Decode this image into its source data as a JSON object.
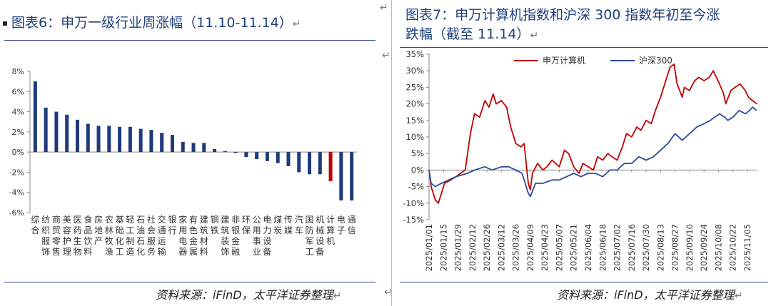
{
  "left": {
    "title": "图表6：申万一级行业周涨幅（11.10-11.14）",
    "source": "资料来源：iFinD，太平洋证券整理"
  },
  "right": {
    "title_line1": "图表7：申万计算机指数和沪深 300 指数年初至今涨",
    "title_line2": "跌幅（截至 11.14）",
    "source": "资料来源：iFinD，太平洋证券整理"
  },
  "return_mark": "↵",
  "chart_data": [
    {
      "type": "bar",
      "bar_color": "#1f3a7a",
      "highlight_color": "#c00000",
      "highlight_category": "计算机",
      "categories": [
        "综合",
        "纺织服饰",
        "商贸零售",
        "美容护理",
        "医药生物",
        "食品饮料",
        "房地产",
        "农林牧渔",
        "基础化工",
        "轻工制造",
        "石油石化",
        "社会服务",
        "交通运输",
        "银行",
        "家用电器",
        "有色金属",
        "建筑材料",
        "钢铁",
        "建筑装饰",
        "非银金融",
        "环保",
        "公用事业",
        "电力设备",
        "煤炭",
        "传媒",
        "汽车",
        "国防军工",
        "机械设备",
        "计算机",
        "电子",
        "通信"
      ],
      "values": [
        7.0,
        4.4,
        4.0,
        3.7,
        3.2,
        2.8,
        2.6,
        2.6,
        2.5,
        2.5,
        2.3,
        2.2,
        1.9,
        1.7,
        1.0,
        0.9,
        0.9,
        0.3,
        0.1,
        -0.1,
        -0.5,
        -0.7,
        -0.9,
        -1.1,
        -1.4,
        -2.0,
        -2.2,
        -2.2,
        -2.9,
        -4.8,
        -4.8
      ],
      "ylim": [
        -6,
        8
      ],
      "yticks": [
        "-6%",
        "-4%",
        "-2%",
        "0%",
        "2%",
        "4%",
        "6%",
        "8%"
      ]
    },
    {
      "type": "line",
      "ylim": [
        -15,
        35
      ],
      "yticks": [
        "-15%",
        "-10%",
        "-5%",
        "0%",
        "5%",
        "10%",
        "15%",
        "20%",
        "25%",
        "30%",
        "35%"
      ],
      "xticks": [
        "2025/01/01",
        "2025/01/15",
        "2025/01/29",
        "2025/02/12",
        "2025/02/26",
        "2025/03/12",
        "2025/03/26",
        "2025/04/09",
        "2025/04/23",
        "2025/05/07",
        "2025/05/21",
        "2025/06/04",
        "2025/06/18",
        "2025/07/02",
        "2025/07/16",
        "2025/07/30",
        "2025/08/13",
        "2025/08/27",
        "2025/09/10",
        "2025/09/24",
        "2025/10/08",
        "2025/10/22",
        "2025/11/05"
      ],
      "legend_position": "top",
      "series": [
        {
          "name": "申万计算机",
          "color": "#c00000",
          "points": [
            [
              "2025/01/01",
              0
            ],
            [
              "2025/01/03",
              -5
            ],
            [
              "2025/01/07",
              -9
            ],
            [
              "2025/01/10",
              -10
            ],
            [
              "2025/01/13",
              -7
            ],
            [
              "2025/01/16",
              -4
            ],
            [
              "2025/01/22",
              -3
            ],
            [
              "2025/01/27",
              -2
            ],
            [
              "2025/02/05",
              0
            ],
            [
              "2025/02/10",
              11
            ],
            [
              "2025/02/14",
              17
            ],
            [
              "2025/02/19",
              16
            ],
            [
              "2025/02/24",
              21
            ],
            [
              "2025/02/28",
              19
            ],
            [
              "2025/03/04",
              23
            ],
            [
              "2025/03/07",
              20
            ],
            [
              "2025/03/12",
              21
            ],
            [
              "2025/03/17",
              19
            ],
            [
              "2025/03/21",
              13
            ],
            [
              "2025/03/26",
              8
            ],
            [
              "2025/03/31",
              7
            ],
            [
              "2025/04/03",
              8
            ],
            [
              "2025/04/07",
              -4
            ],
            [
              "2025/04/09",
              -6
            ],
            [
              "2025/04/11",
              -1
            ],
            [
              "2025/04/16",
              2
            ],
            [
              "2025/04/21",
              0
            ],
            [
              "2025/04/25",
              1
            ],
            [
              "2025/04/30",
              3
            ],
            [
              "2025/05/07",
              1
            ],
            [
              "2025/05/12",
              6
            ],
            [
              "2025/05/16",
              5
            ],
            [
              "2025/05/21",
              1
            ],
            [
              "2025/05/26",
              -1
            ],
            [
              "2025/05/30",
              2
            ],
            [
              "2025/06/04",
              1
            ],
            [
              "2025/06/09",
              0
            ],
            [
              "2025/06/13",
              4
            ],
            [
              "2025/06/18",
              3
            ],
            [
              "2025/06/23",
              5
            ],
            [
              "2025/06/27",
              4
            ],
            [
              "2025/07/02",
              3
            ],
            [
              "2025/07/07",
              7
            ],
            [
              "2025/07/11",
              11
            ],
            [
              "2025/07/16",
              10
            ],
            [
              "2025/07/21",
              13
            ],
            [
              "2025/07/25",
              12
            ],
            [
              "2025/07/30",
              15
            ],
            [
              "2025/08/04",
              14
            ],
            [
              "2025/08/08",
              18
            ],
            [
              "2025/08/13",
              22
            ],
            [
              "2025/08/18",
              27
            ],
            [
              "2025/08/22",
              31
            ],
            [
              "2025/08/26",
              32
            ],
            [
              "2025/08/29",
              26
            ],
            [
              "2025/09/03",
              22
            ],
            [
              "2025/09/05",
              25
            ],
            [
              "2025/09/10",
              24
            ],
            [
              "2025/09/15",
              27
            ],
            [
              "2025/09/19",
              28
            ],
            [
              "2025/09/24",
              27
            ],
            [
              "2025/09/29",
              28
            ],
            [
              "2025/10/03",
              30
            ],
            [
              "2025/10/09",
              26
            ],
            [
              "2025/10/13",
              23
            ],
            [
              "2025/10/15",
              20
            ],
            [
              "2025/10/20",
              24
            ],
            [
              "2025/10/24",
              25
            ],
            [
              "2025/10/29",
              26
            ],
            [
              "2025/11/03",
              24
            ],
            [
              "2025/11/06",
              22
            ],
            [
              "2025/11/10",
              21
            ],
            [
              "2025/11/14",
              20
            ]
          ]
        },
        {
          "name": "沪深300",
          "color": "#2e4a9e",
          "points": [
            [
              "2025/01/01",
              0
            ],
            [
              "2025/01/03",
              -4
            ],
            [
              "2025/01/07",
              -5
            ],
            [
              "2025/01/13",
              -4
            ],
            [
              "2025/01/20",
              -3
            ],
            [
              "2025/01/27",
              -2
            ],
            [
              "2025/02/07",
              -1
            ],
            [
              "2025/02/14",
              0
            ],
            [
              "2025/02/24",
              1
            ],
            [
              "2025/03/03",
              0
            ],
            [
              "2025/03/12",
              1
            ],
            [
              "2025/03/19",
              1
            ],
            [
              "2025/03/26",
              0
            ],
            [
              "2025/04/01",
              -1
            ],
            [
              "2025/04/07",
              -7
            ],
            [
              "2025/04/09",
              -8
            ],
            [
              "2025/04/14",
              -4
            ],
            [
              "2025/04/21",
              -4
            ],
            [
              "2025/04/30",
              -3
            ],
            [
              "2025/05/07",
              -3
            ],
            [
              "2025/05/14",
              -2
            ],
            [
              "2025/05/21",
              -1
            ],
            [
              "2025/05/28",
              -2
            ],
            [
              "2025/06/04",
              -1
            ],
            [
              "2025/06/11",
              -1
            ],
            [
              "2025/06/18",
              -2
            ],
            [
              "2025/06/25",
              0
            ],
            [
              "2025/07/02",
              0
            ],
            [
              "2025/07/09",
              2
            ],
            [
              "2025/07/16",
              2
            ],
            [
              "2025/07/23",
              4
            ],
            [
              "2025/07/30",
              3
            ],
            [
              "2025/08/06",
              4
            ],
            [
              "2025/08/13",
              6
            ],
            [
              "2025/08/20",
              8
            ],
            [
              "2025/08/27",
              11
            ],
            [
              "2025/09/03",
              9
            ],
            [
              "2025/09/10",
              11
            ],
            [
              "2025/09/17",
              13
            ],
            [
              "2025/09/24",
              14
            ],
            [
              "2025/09/30",
              15
            ],
            [
              "2025/10/09",
              17
            ],
            [
              "2025/10/14",
              16
            ],
            [
              "2025/10/17",
              15
            ],
            [
              "2025/10/22",
              16
            ],
            [
              "2025/10/28",
              18
            ],
            [
              "2025/11/03",
              17
            ],
            [
              "2025/11/07",
              18
            ],
            [
              "2025/11/10",
              19
            ],
            [
              "2025/11/14",
              18
            ]
          ]
        }
      ]
    }
  ]
}
